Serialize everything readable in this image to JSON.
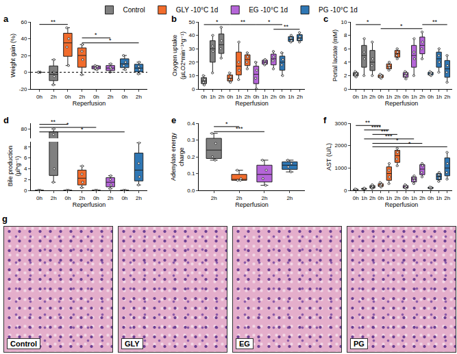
{
  "chart_data": [
    {
      "type": "box",
      "label": "a",
      "y_title": "Weight gain (%)",
      "x_title": "Reperfusion",
      "categories": [
        "0h",
        "2h",
        "0h",
        "2h",
        "0h",
        "2h",
        "0h",
        "2h"
      ],
      "series": [
        {
          "name": "Control",
          "color": "#808080",
          "values": [
            [
              0,
              0,
              0,
              0
            ],
            [
              -15,
              -5,
              0,
              15
            ],
            null,
            null,
            null,
            null,
            null,
            null
          ]
        },
        {
          "name": "GLY -10°C 1d",
          "color": "#f26c2c",
          "values": [
            null,
            null,
            [
              8,
              30,
              40,
              53
            ],
            [
              -3,
              15,
              25,
              33
            ],
            null,
            null,
            null,
            null
          ]
        },
        {
          "name": "EG -10°C 1d",
          "color": "#b565d8",
          "values": [
            null,
            null,
            null,
            null,
            [
              3,
              5,
              7,
              8
            ],
            [
              0,
              4,
              6,
              10
            ],
            null,
            null
          ]
        },
        {
          "name": "PG -10°C 1d",
          "color": "#2f77b4",
          "values": [
            null,
            null,
            null,
            null,
            null,
            null,
            [
              3,
              8,
              12,
              20
            ],
            [
              -2,
              3,
              7,
              12
            ]
          ]
        }
      ],
      "ylim": [
        -20,
        60
      ],
      "yticks": [
        -20,
        0,
        20,
        40,
        60
      ],
      "reference_line": 0,
      "significance": [
        {
          "from": 0,
          "to": 2,
          "y": 57,
          "label": "**"
        },
        {
          "from": 3,
          "to": 5,
          "y": 41,
          "label": "*"
        },
        {
          "from": 3,
          "to": 7,
          "y": 35,
          "label": "*"
        }
      ]
    },
    {
      "type": "box",
      "label": "b",
      "y_title": [
        "Oxygen uptake",
        "(µLO2*min⁻¹*g⁻¹)"
      ],
      "x_title": "Reperfusion",
      "categories": [
        "0h",
        "1h",
        "2h",
        "0h",
        "1h",
        "2h",
        "0h",
        "1h",
        "2h",
        "0h",
        "1h",
        "2h"
      ],
      "series": [
        {
          "name": "Control",
          "color": "#808080",
          "values": [
            [
              3,
              5,
              7,
              10
            ],
            [
              12,
              28,
              32,
              40
            ],
            [
              23,
              30,
              36,
              46
            ],
            null,
            null,
            null,
            null,
            null,
            null,
            null,
            null,
            null
          ]
        },
        {
          "name": "GLY -10°C 1d",
          "color": "#f26c2c",
          "values": [
            null,
            null,
            null,
            [
              5,
              7,
              9,
              12
            ],
            [
              7,
              14,
              20,
              35
            ],
            [
              15,
              20,
              24,
              27
            ],
            null,
            null,
            null,
            null,
            null,
            null
          ]
        },
        {
          "name": "EG -10°C 1d",
          "color": "#b565d8",
          "values": [
            null,
            null,
            null,
            null,
            null,
            null,
            [
              0,
              8,
              14,
              20
            ],
            [
              18,
              19,
              21,
              22
            ],
            [
              15,
              21,
              24,
              28
            ],
            null,
            null,
            null
          ]
        },
        {
          "name": "PG -10°C 1d",
          "color": "#2f77b4",
          "values": [
            null,
            null,
            null,
            null,
            null,
            null,
            null,
            null,
            null,
            [
              10,
              18,
              22,
              27
            ],
            [
              35,
              36,
              38,
              40
            ],
            [
              35,
              37,
              39,
              42
            ]
          ]
        }
      ],
      "ylim": [
        0,
        50
      ],
      "yticks": [
        0,
        10,
        20,
        30,
        40,
        50
      ],
      "significance": [
        {
          "from": 0,
          "to": 3,
          "y": 48,
          "label": "*"
        },
        {
          "from": 3,
          "to": 6,
          "y": 48,
          "label": "**"
        },
        {
          "from": 6,
          "to": 9,
          "y": 48,
          "label": "*"
        },
        {
          "from": 8,
          "to": 11,
          "y": 44.5,
          "label": "**"
        }
      ]
    },
    {
      "type": "box",
      "label": "c",
      "y_title": "Portal lactate (mM)",
      "x_title": "Reperfusion",
      "categories": [
        "0h",
        "1h",
        "2h",
        "0h",
        "1h",
        "2h",
        "0h",
        "1h",
        "2h",
        "0h",
        "1h",
        "2h"
      ],
      "series": [
        {
          "name": "Control",
          "color": "#808080",
          "values": [
            [
              1.8,
              2.1,
              2.3,
              2.6
            ],
            [
              2,
              4.5,
              5.5,
              7.5
            ],
            [
              2,
              3.5,
              4.5,
              7
            ],
            null,
            null,
            null,
            null,
            null,
            null,
            null,
            null,
            null
          ]
        },
        {
          "name": "GLY -10°C 1d",
          "color": "#f26c2c",
          "values": [
            null,
            null,
            null,
            [
              1.6,
              1.8,
              2,
              2.2
            ],
            [
              2.8,
              3.2,
              3.5,
              4
            ],
            [
              4.5,
              5,
              5.5,
              6
            ],
            null,
            null,
            null,
            null,
            null,
            null
          ]
        },
        {
          "name": "EG -10°C 1d",
          "color": "#b565d8",
          "values": [
            null,
            null,
            null,
            null,
            null,
            null,
            [
              1.5,
              2,
              2.3,
              2.6
            ],
            [
              2,
              4.5,
              5.5,
              7.5
            ],
            [
              4.5,
              6,
              7,
              8.5
            ],
            null,
            null,
            null
          ]
        },
        {
          "name": "PG -10°C 1d",
          "color": "#2f77b4",
          "values": [
            null,
            null,
            null,
            null,
            null,
            null,
            null,
            null,
            null,
            [
              2,
              2.2,
              2.4,
              2.6
            ],
            [
              2.5,
              4,
              5,
              6
            ],
            [
              1,
              2.5,
              3.5,
              5
            ]
          ]
        }
      ],
      "ylim": [
        0,
        10
      ],
      "yticks": [
        0,
        2,
        4,
        6,
        8,
        10
      ],
      "significance": [
        {
          "from": 0,
          "to": 3,
          "y": 9.6,
          "label": "*"
        },
        {
          "from": 3,
          "to": 8,
          "y": 9,
          "label": "*"
        },
        {
          "from": 8,
          "to": 11,
          "y": 9.6,
          "label": "**"
        }
      ]
    },
    {
      "type": "box",
      "label": "d",
      "y_title": [
        "Bile production",
        "(µl*g⁻¹)"
      ],
      "x_title": "Reperfusion",
      "categories": [
        "0h",
        "2h",
        "0h",
        "2h",
        "0h",
        "2h",
        "0h",
        "2h"
      ],
      "series": [
        {
          "name": "Control",
          "color": "#808080",
          "values": [
            [
              0,
              0,
              0,
              0
            ],
            [
              1.5,
              4,
              65,
              80
            ],
            null,
            null,
            null,
            null,
            null,
            null
          ]
        },
        {
          "name": "GLY -10°C 1d",
          "color": "#f26c2c",
          "values": [
            null,
            null,
            [
              0,
              0,
              0,
              0
            ],
            [
              0.5,
              1.5,
              3,
              4.5
            ],
            null,
            null,
            null,
            null
          ]
        },
        {
          "name": "EG -10°C 1d",
          "color": "#b565d8",
          "values": [
            null,
            null,
            null,
            null,
            [
              0,
              0,
              0,
              0
            ],
            [
              0.3,
              1,
              2,
              2.7
            ],
            null,
            null
          ]
        },
        {
          "name": "PG -10°C 1d",
          "color": "#2f77b4",
          "values": [
            null,
            null,
            null,
            null,
            null,
            null,
            [
              0,
              0,
              0,
              0
            ],
            [
              1,
              2.5,
              5,
              8.8
            ]
          ]
        }
      ],
      "ylim": [
        0,
        9
      ],
      "yticks": [
        0,
        2,
        4,
        6,
        8
      ],
      "upper_ylim": [
        55,
        95
      ],
      "upper_yticks": [
        80
      ],
      "significance": [
        {
          "from": 0,
          "to": 2,
          "y": 92,
          "label": "**",
          "axis": "upper"
        },
        {
          "from": 0,
          "to": 4,
          "y": 84,
          "label": "*",
          "axis": "upper"
        },
        {
          "from": 0,
          "to": 6,
          "y": 72,
          "label": "*",
          "axis": "upper"
        }
      ]
    },
    {
      "type": "box",
      "label": "e",
      "y_title": [
        "Adenylate energy",
        "charge"
      ],
      "x_title": "Reperfusion",
      "categories": [
        "2h",
        "2h",
        "2h",
        "2h"
      ],
      "series": [
        {
          "name": "Control",
          "color": "#808080",
          "values": [
            [
              0.18,
              0.2,
              0.28,
              0.34
            ],
            null,
            null,
            null
          ]
        },
        {
          "name": "GLY -10°C 1d",
          "color": "#f26c2c",
          "values": [
            null,
            [
              0.06,
              0.06,
              0.07,
              0.12
            ],
            null,
            null
          ]
        },
        {
          "name": "EG -10°C 1d",
          "color": "#b565d8",
          "values": [
            null,
            null,
            [
              0.03,
              0.07,
              0.12,
              0.18
            ],
            null
          ]
        },
        {
          "name": "PG -10°C 1d",
          "color": "#2f77b4",
          "values": [
            null,
            null,
            null,
            [
              0.11,
              0.14,
              0.16,
              0.18
            ]
          ]
        }
      ],
      "ylim": [
        0,
        0.4
      ],
      "yticks": [
        {
          "value": 0,
          "label": "0.0"
        },
        0.1,
        0.2,
        0.3,
        0.4
      ],
      "significance": [
        {
          "from": 0,
          "to": 1,
          "y": 0.38,
          "label": "*"
        },
        {
          "from": 0,
          "to": 2,
          "y": 0.35,
          "label": "***"
        }
      ]
    },
    {
      "type": "box",
      "label": "f",
      "y_title": "AST (U/L)",
      "x_title": "Reperfusion",
      "categories": [
        "0h",
        "1h",
        "2h",
        "0h",
        "1h",
        "2h",
        "0h",
        "1h",
        "2h",
        "0h",
        "1h",
        "2h"
      ],
      "series": [
        {
          "name": "Control",
          "color": "#808080",
          "values": [
            [
              20,
              30,
              40,
              60
            ],
            [
              40,
              60,
              80,
              100
            ],
            [
              80,
              120,
              180,
              250
            ],
            null,
            null,
            null,
            null,
            null,
            null,
            null,
            null,
            null
          ]
        },
        {
          "name": "GLY -10°C 1d",
          "color": "#f26c2c",
          "values": [
            null,
            null,
            null,
            [
              150,
              200,
              250,
              350
            ],
            [
              300,
              600,
              900,
              1200
            ],
            [
              1100,
              1400,
              1700,
              1880
            ],
            null,
            null,
            null,
            null,
            null,
            null
          ]
        },
        {
          "name": "EG -10°C 1d",
          "color": "#b565d8",
          "values": [
            null,
            null,
            null,
            null,
            null,
            null,
            [
              80,
              120,
              180,
              250
            ],
            [
              300,
              450,
              550,
              650
            ],
            [
              600,
              800,
              1100,
              1200
            ],
            null,
            null,
            null
          ]
        },
        {
          "name": "PG -10°C 1d",
          "color": "#2f77b4",
          "values": [
            null,
            null,
            null,
            null,
            null,
            null,
            null,
            null,
            null,
            [
              70,
              100,
              130,
              150
            ],
            [
              400,
              550,
              700,
              800
            ],
            [
              500,
              800,
              1200,
              1700
            ]
          ]
        }
      ],
      "ylim": [
        0,
        3000
      ],
      "yticks": [
        0,
        1000,
        2000,
        3000
      ],
      "significance": [
        {
          "from": 0,
          "to": 3,
          "y": 2900,
          "label": "**"
        },
        {
          "from": 1,
          "to": 4,
          "y": 2700,
          "label": "****"
        },
        {
          "from": 2,
          "to": 5,
          "y": 2500,
          "label": "***"
        },
        {
          "from": 1,
          "to": 7,
          "y": 2300,
          "label": "***"
        },
        {
          "from": 2,
          "to": 8,
          "y": 2100,
          "label": "*"
        },
        {
          "from": 2,
          "to": 11,
          "y": 1950,
          "label": "*"
        }
      ]
    }
  ],
  "histology": {
    "label": "g",
    "images": [
      {
        "label": "Control"
      },
      {
        "label": "GLY"
      },
      {
        "label": "EG"
      },
      {
        "label": "PG"
      }
    ]
  }
}
